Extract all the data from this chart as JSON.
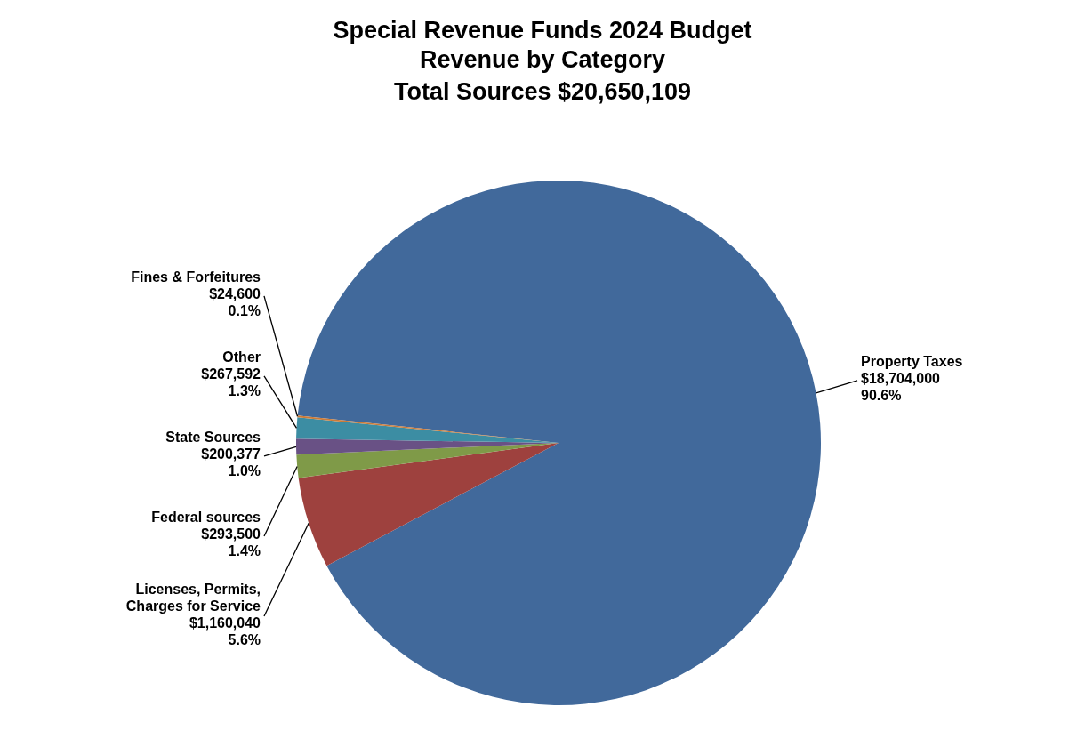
{
  "chart_data": {
    "type": "pie",
    "title": "Special Revenue Funds 2024 Budget",
    "subtitle": "Revenue by Category",
    "annotations": [
      "Total Sources $20,650,109"
    ],
    "categories": [
      "Property Taxes",
      "Licenses, Permits, Charges for Service",
      "Federal sources",
      "State Sources",
      "Other",
      "Fines & Forfeitures"
    ],
    "values": [
      18704000,
      1160040,
      293500,
      200377,
      267592,
      24600
    ],
    "colors": [
      "#41699b",
      "#9e413e",
      "#7f9a48",
      "#695185",
      "#3c8da3",
      "#cc7b38"
    ],
    "value_labels": [
      "$18,704,000\n90.6%",
      "$1,160,040\n5.6%",
      "$293,500\n1.4%",
      "$200,377\n1.0%",
      "$267,592\n1.3%",
      "$24,600\n0.1%"
    ]
  }
}
